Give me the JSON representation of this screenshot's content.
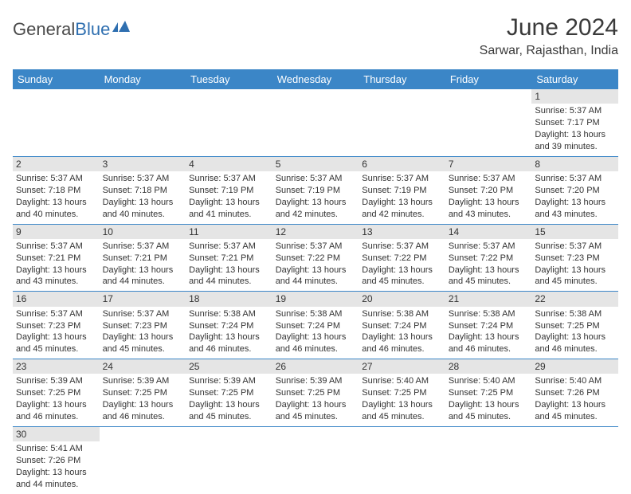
{
  "brand": {
    "name1": "General",
    "name2": "Blue"
  },
  "title": "June 2024",
  "location": "Sarwar, Rajasthan, India",
  "colors": {
    "headerBg": "#3b86c7",
    "headerText": "#ffffff",
    "dayStripBg": "#e5e5e5",
    "cellBorder": "#3b86c7",
    "textColor": "#333333",
    "brandBlue": "#2f6fb0"
  },
  "dayHeaders": [
    "Sunday",
    "Monday",
    "Tuesday",
    "Wednesday",
    "Thursday",
    "Friday",
    "Saturday"
  ],
  "weeks": [
    [
      null,
      null,
      null,
      null,
      null,
      null,
      {
        "n": "1",
        "sunrise": "5:37 AM",
        "sunset": "7:17 PM",
        "daylight": "13 hours and 39 minutes."
      }
    ],
    [
      {
        "n": "2",
        "sunrise": "5:37 AM",
        "sunset": "7:18 PM",
        "daylight": "13 hours and 40 minutes."
      },
      {
        "n": "3",
        "sunrise": "5:37 AM",
        "sunset": "7:18 PM",
        "daylight": "13 hours and 40 minutes."
      },
      {
        "n": "4",
        "sunrise": "5:37 AM",
        "sunset": "7:19 PM",
        "daylight": "13 hours and 41 minutes."
      },
      {
        "n": "5",
        "sunrise": "5:37 AM",
        "sunset": "7:19 PM",
        "daylight": "13 hours and 42 minutes."
      },
      {
        "n": "6",
        "sunrise": "5:37 AM",
        "sunset": "7:19 PM",
        "daylight": "13 hours and 42 minutes."
      },
      {
        "n": "7",
        "sunrise": "5:37 AM",
        "sunset": "7:20 PM",
        "daylight": "13 hours and 43 minutes."
      },
      {
        "n": "8",
        "sunrise": "5:37 AM",
        "sunset": "7:20 PM",
        "daylight": "13 hours and 43 minutes."
      }
    ],
    [
      {
        "n": "9",
        "sunrise": "5:37 AM",
        "sunset": "7:21 PM",
        "daylight": "13 hours and 43 minutes."
      },
      {
        "n": "10",
        "sunrise": "5:37 AM",
        "sunset": "7:21 PM",
        "daylight": "13 hours and 44 minutes."
      },
      {
        "n": "11",
        "sunrise": "5:37 AM",
        "sunset": "7:21 PM",
        "daylight": "13 hours and 44 minutes."
      },
      {
        "n": "12",
        "sunrise": "5:37 AM",
        "sunset": "7:22 PM",
        "daylight": "13 hours and 44 minutes."
      },
      {
        "n": "13",
        "sunrise": "5:37 AM",
        "sunset": "7:22 PM",
        "daylight": "13 hours and 45 minutes."
      },
      {
        "n": "14",
        "sunrise": "5:37 AM",
        "sunset": "7:22 PM",
        "daylight": "13 hours and 45 minutes."
      },
      {
        "n": "15",
        "sunrise": "5:37 AM",
        "sunset": "7:23 PM",
        "daylight": "13 hours and 45 minutes."
      }
    ],
    [
      {
        "n": "16",
        "sunrise": "5:37 AM",
        "sunset": "7:23 PM",
        "daylight": "13 hours and 45 minutes."
      },
      {
        "n": "17",
        "sunrise": "5:37 AM",
        "sunset": "7:23 PM",
        "daylight": "13 hours and 45 minutes."
      },
      {
        "n": "18",
        "sunrise": "5:38 AM",
        "sunset": "7:24 PM",
        "daylight": "13 hours and 46 minutes."
      },
      {
        "n": "19",
        "sunrise": "5:38 AM",
        "sunset": "7:24 PM",
        "daylight": "13 hours and 46 minutes."
      },
      {
        "n": "20",
        "sunrise": "5:38 AM",
        "sunset": "7:24 PM",
        "daylight": "13 hours and 46 minutes."
      },
      {
        "n": "21",
        "sunrise": "5:38 AM",
        "sunset": "7:24 PM",
        "daylight": "13 hours and 46 minutes."
      },
      {
        "n": "22",
        "sunrise": "5:38 AM",
        "sunset": "7:25 PM",
        "daylight": "13 hours and 46 minutes."
      }
    ],
    [
      {
        "n": "23",
        "sunrise": "5:39 AM",
        "sunset": "7:25 PM",
        "daylight": "13 hours and 46 minutes."
      },
      {
        "n": "24",
        "sunrise": "5:39 AM",
        "sunset": "7:25 PM",
        "daylight": "13 hours and 46 minutes."
      },
      {
        "n": "25",
        "sunrise": "5:39 AM",
        "sunset": "7:25 PM",
        "daylight": "13 hours and 45 minutes."
      },
      {
        "n": "26",
        "sunrise": "5:39 AM",
        "sunset": "7:25 PM",
        "daylight": "13 hours and 45 minutes."
      },
      {
        "n": "27",
        "sunrise": "5:40 AM",
        "sunset": "7:25 PM",
        "daylight": "13 hours and 45 minutes."
      },
      {
        "n": "28",
        "sunrise": "5:40 AM",
        "sunset": "7:25 PM",
        "daylight": "13 hours and 45 minutes."
      },
      {
        "n": "29",
        "sunrise": "5:40 AM",
        "sunset": "7:26 PM",
        "daylight": "13 hours and 45 minutes."
      }
    ],
    [
      {
        "n": "30",
        "sunrise": "5:41 AM",
        "sunset": "7:26 PM",
        "daylight": "13 hours and 44 minutes."
      },
      null,
      null,
      null,
      null,
      null,
      null
    ]
  ],
  "labels": {
    "sunrise": "Sunrise: ",
    "sunset": "Sunset: ",
    "daylight": "Daylight: "
  }
}
